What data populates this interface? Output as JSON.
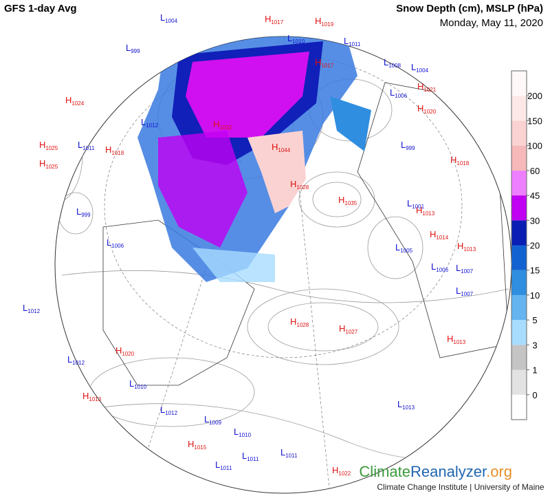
{
  "header": {
    "title": "GFS 1-day Avg",
    "variables": "Snow Depth (cm), MSLP (hPa)",
    "date": "Monday, May 11, 2020"
  },
  "legend": {
    "levels": [
      0,
      1,
      3,
      5,
      10,
      15,
      20,
      30,
      45,
      60,
      100,
      150,
      200
    ],
    "colors": [
      "#ffffff",
      "#e2e2e2",
      "#c4c4c4",
      "#a8dcff",
      "#64b4f0",
      "#2f8ee0",
      "#1262d2",
      "#0a1eb4",
      "#c000f2",
      "#ee80ff",
      "#f6b8b8",
      "#fbd2d2",
      "#fde8e8",
      "#fff8f8"
    ]
  },
  "pressure_centers": [
    {
      "kind": "H",
      "value": 1024
    },
    {
      "kind": "H",
      "value": 1025
    },
    {
      "kind": "H",
      "value": 1025
    },
    {
      "kind": "H",
      "value": 1018
    },
    {
      "kind": "H",
      "value": 1017
    },
    {
      "kind": "H",
      "value": 1019
    },
    {
      "kind": "H",
      "value": 1021
    },
    {
      "kind": "H",
      "value": 1020
    },
    {
      "kind": "H",
      "value": 1032
    },
    {
      "kind": "H",
      "value": 1044
    },
    {
      "kind": "H",
      "value": 1028
    },
    {
      "kind": "H",
      "value": 1035
    },
    {
      "kind": "H",
      "value": 1018
    },
    {
      "kind": "H",
      "value": 1013
    },
    {
      "kind": "H",
      "value": 1014
    },
    {
      "kind": "H",
      "value": 1013
    },
    {
      "kind": "H",
      "value": 1028
    },
    {
      "kind": "H",
      "value": 1027
    },
    {
      "kind": "H",
      "value": 1020
    },
    {
      "kind": "H",
      "value": 1013
    },
    {
      "kind": "H",
      "value": 1015
    },
    {
      "kind": "H",
      "value": 1022
    },
    {
      "kind": "H",
      "value": 1013
    },
    {
      "kind": "H",
      "value": 1017
    },
    {
      "kind": "L",
      "value": 1004
    },
    {
      "kind": "L",
      "value": 999
    },
    {
      "kind": "L",
      "value": 1012
    },
    {
      "kind": "L",
      "value": 1011
    },
    {
      "kind": "L",
      "value": 999
    },
    {
      "kind": "L",
      "value": 1006
    },
    {
      "kind": "L",
      "value": 1012
    },
    {
      "kind": "L",
      "value": 1012
    },
    {
      "kind": "L",
      "value": 1010
    },
    {
      "kind": "L",
      "value": 1012
    },
    {
      "kind": "L",
      "value": 1009
    },
    {
      "kind": "L",
      "value": 1010
    },
    {
      "kind": "L",
      "value": 1011
    },
    {
      "kind": "L",
      "value": 1011
    },
    {
      "kind": "L",
      "value": 1011
    },
    {
      "kind": "L",
      "value": 1013
    },
    {
      "kind": "L",
      "value": 1005
    },
    {
      "kind": "L",
      "value": 1006
    },
    {
      "kind": "L",
      "value": 1007
    },
    {
      "kind": "L",
      "value": 1007
    },
    {
      "kind": "L",
      "value": 1001
    },
    {
      "kind": "L",
      "value": 999
    },
    {
      "kind": "L",
      "value": 1006
    },
    {
      "kind": "L",
      "value": 1004
    },
    {
      "kind": "L",
      "value": 1008
    },
    {
      "kind": "L",
      "value": 1011
    },
    {
      "kind": "L",
      "value": 1010
    }
  ],
  "footer": {
    "brand_1": "Climate",
    "brand_2": "Reanalyzer",
    "brand_3": ".org",
    "credit": "Climate Change Institute | University of Maine"
  }
}
